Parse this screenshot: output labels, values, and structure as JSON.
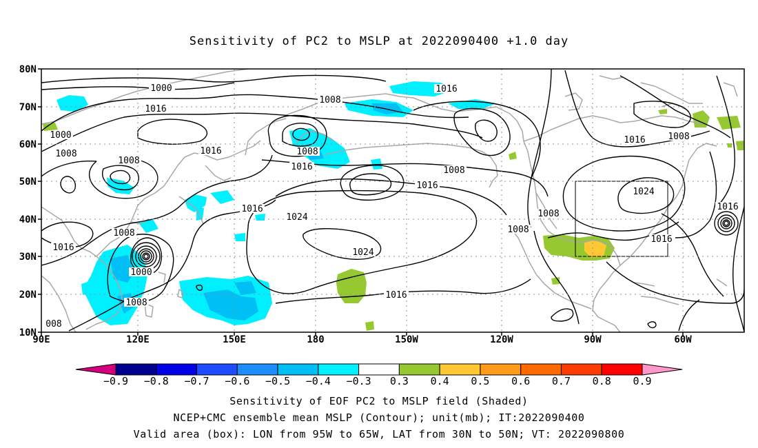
{
  "title": "Sensitivity of PC2 to MSLP at 2022090400 +1.0 day",
  "lat_labels": [
    "80N",
    "70N",
    "60N",
    "50N",
    "40N",
    "30N",
    "20N",
    "10N"
  ],
  "lon_labels": [
    "90E",
    "120E",
    "150E",
    "180",
    "150W",
    "120W",
    "90W",
    "60W"
  ],
  "contour_labels": [
    {
      "text": "1000"
    },
    {
      "text": "1016"
    },
    {
      "text": "1000"
    },
    {
      "text": "1008"
    },
    {
      "text": "1008"
    },
    {
      "text": "1000"
    },
    {
      "text": "1008"
    },
    {
      "text": "1016"
    },
    {
      "text": "1008"
    },
    {
      "text": "1016"
    },
    {
      "text": "1016"
    },
    {
      "text": "1008"
    },
    {
      "text": "1016"
    },
    {
      "text": "1016"
    },
    {
      "text": "1024"
    },
    {
      "text": "1024"
    },
    {
      "text": "1008"
    },
    {
      "text": "1016"
    },
    {
      "text": "1000"
    },
    {
      "text": "1008"
    },
    {
      "text": "1016"
    },
    {
      "text": "1008"
    },
    {
      "text": "1008"
    },
    {
      "text": "1024"
    },
    {
      "text": "1016"
    },
    {
      "text": "1016"
    },
    {
      "text": "008"
    }
  ],
  "colorbar": {
    "colors": [
      "#d2007e",
      "#00008f",
      "#0000e6",
      "#1e4cff",
      "#1c8cff",
      "#00bff5",
      "#00f0ff",
      "#ffffff",
      "#96c832",
      "#ffc832",
      "#ff9a1a",
      "#ff6a00",
      "#ff3c00",
      "#ff0000",
      "#ff99cc"
    ],
    "labels": [
      "−0.9",
      "−0.8",
      "−0.7",
      "−0.6",
      "−0.5",
      "−0.4",
      "−0.3",
      "0.3",
      "0.4",
      "0.5",
      "0.6",
      "0.7",
      "0.8",
      "0.9"
    ]
  },
  "captions": {
    "line1": "Sensitivity of EOF PC2 to MSLP field (Shaded)",
    "line2": "NCEP+CMC ensemble mean MSLP (Contour); unit(mb); IT:2022090400",
    "line3": "Valid area (box): LON from 95W to 65W, LAT from 30N to 50N; VT: 2022090800"
  },
  "colors": {
    "cyan": "#00f0ff",
    "light_blue": "#00bff5",
    "green": "#96c832",
    "yellow": "#ffc832",
    "coast": "#a8a8a8"
  }
}
